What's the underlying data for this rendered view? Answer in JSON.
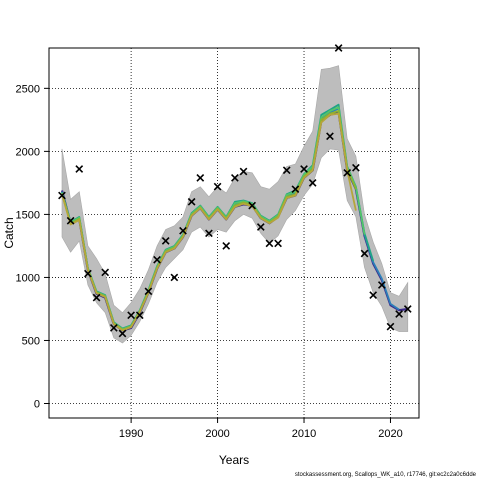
{
  "chart_data": {
    "type": "line",
    "xlabel": "Years",
    "ylabel": "Catch",
    "xlim": [
      1980.5,
      2023.3
    ],
    "ylim": [
      -115,
      2820
    ],
    "xticks": [
      1990,
      2000,
      2010,
      2020
    ],
    "yticks": [
      0,
      500,
      1000,
      1500,
      2000,
      2500
    ],
    "grid": true,
    "colors": {
      "band": "#bdbdbd",
      "band_edge": "#a8a8a8",
      "series": [
        "#3b2a8c",
        "#2c7fb8",
        "#20a486",
        "#54c568",
        "#8fb22d",
        "#b5a63a"
      ],
      "observed": "#000000"
    },
    "years": [
      1982,
      1983,
      1984,
      1985,
      1986,
      1987,
      1988,
      1989,
      1990,
      1991,
      1992,
      1993,
      1994,
      1995,
      1996,
      1997,
      1998,
      1999,
      2000,
      2001,
      2002,
      2003,
      2004,
      2005,
      2006,
      2007,
      2008,
      2009,
      2010,
      2011,
      2012,
      2013,
      2014,
      2015,
      2016,
      2017,
      2018,
      2019,
      2020,
      2021,
      2022
    ],
    "band_upper": [
      2020,
      1620,
      1680,
      1250,
      1150,
      1030,
      780,
      720,
      800,
      910,
      1060,
      1250,
      1380,
      1410,
      1480,
      1680,
      1720,
      1640,
      1720,
      1670,
      1790,
      1840,
      1830,
      1720,
      1700,
      1760,
      1880,
      1900,
      2040,
      2160,
      2650,
      2660,
      2680,
      2100,
      1960,
      1500,
      1280,
      1110,
      880,
      850,
      960
    ],
    "band_lower": [
      1320,
      1200,
      1290,
      940,
      800,
      720,
      520,
      480,
      540,
      650,
      790,
      960,
      1080,
      1150,
      1220,
      1360,
      1400,
      1320,
      1380,
      1360,
      1450,
      1500,
      1470,
      1350,
      1270,
      1330,
      1460,
      1530,
      1650,
      1740,
      1950,
      2020,
      2010,
      1610,
      1480,
      1080,
      880,
      770,
      600,
      570,
      570
    ],
    "series": [
      {
        "values": [
          1690,
          1430,
          1460,
          1060,
          870,
          840,
          630,
          580,
          600,
          720,
          880,
          1070,
          1200,
          1230,
          1320,
          1490,
          1550,
          1460,
          1540,
          1460,
          1560,
          1580,
          1570,
          1470,
          1430,
          1480,
          1630,
          1650,
          1790,
          1850,
          2240,
          2290,
          2310,
          1850,
          1700,
          1330,
          1110,
          980,
          780,
          740,
          750
        ]
      },
      {
        "values": [
          1680,
          1430,
          1470,
          1070,
          880,
          850,
          640,
          590,
          610,
          730,
          890,
          1080,
          1210,
          1240,
          1330,
          1500,
          1560,
          1470,
          1550,
          1470,
          1580,
          1600,
          1580,
          1480,
          1440,
          1490,
          1650,
          1670,
          1810,
          1870,
          2260,
          2310,
          2340,
          1870,
          1710,
          1340,
          1120,
          990,
          790,
          745,
          0
        ]
      },
      {
        "values": [
          1675,
          1440,
          1480,
          1075,
          890,
          860,
          645,
          595,
          620,
          740,
          900,
          1090,
          1220,
          1250,
          1340,
          1510,
          1570,
          1480,
          1560,
          1480,
          1600,
          1610,
          1590,
          1490,
          1450,
          1500,
          1660,
          1690,
          1820,
          1890,
          2290,
          2330,
          2370,
          1880,
          1720,
          1350,
          1130,
          0,
          0,
          0,
          0
        ]
      },
      {
        "values": [
          1670,
          1435,
          1475,
          1070,
          885,
          855,
          640,
          590,
          615,
          735,
          895,
          1085,
          1215,
          1245,
          1335,
          1505,
          1565,
          1475,
          1555,
          1475,
          1590,
          1605,
          1585,
          1485,
          1445,
          1495,
          1655,
          1680,
          1815,
          1880,
          2270,
          2320,
          2350,
          1875,
          1715,
          1340,
          0,
          0,
          0,
          0,
          0
        ]
      },
      {
        "values": [
          1665,
          1425,
          1465,
          1065,
          880,
          850,
          635,
          585,
          610,
          730,
          885,
          1075,
          1205,
          1235,
          1325,
          1495,
          1555,
          1465,
          1545,
          1465,
          1570,
          1595,
          1575,
          1475,
          1435,
          1485,
          1640,
          1660,
          1800,
          1860,
          2250,
          2300,
          2320,
          1860,
          1700,
          0,
          0,
          0,
          0,
          0,
          0
        ]
      },
      {
        "values": [
          1660,
          1420,
          1455,
          1060,
          875,
          845,
          630,
          580,
          605,
          725,
          880,
          1070,
          1200,
          1230,
          1320,
          1490,
          1550,
          1460,
          1540,
          1460,
          1560,
          1585,
          1565,
          1470,
          1430,
          1475,
          1630,
          1650,
          1790,
          1850,
          2230,
          2290,
          2300,
          1850,
          1530,
          0,
          0,
          0,
          0,
          0,
          0
        ]
      }
    ],
    "observed": [
      {
        "x": 1982,
        "y": 1650
      },
      {
        "x": 1983,
        "y": 1450
      },
      {
        "x": 1984,
        "y": 1860
      },
      {
        "x": 1985,
        "y": 1030
      },
      {
        "x": 1986,
        "y": 840
      },
      {
        "x": 1987,
        "y": 1040
      },
      {
        "x": 1988,
        "y": 600
      },
      {
        "x": 1989,
        "y": 555
      },
      {
        "x": 1990,
        "y": 700
      },
      {
        "x": 1991,
        "y": 700
      },
      {
        "x": 1992,
        "y": 890
      },
      {
        "x": 1993,
        "y": 1140
      },
      {
        "x": 1994,
        "y": 1290
      },
      {
        "x": 1995,
        "y": 1000
      },
      {
        "x": 1996,
        "y": 1370
      },
      {
        "x": 1997,
        "y": 1600
      },
      {
        "x": 1998,
        "y": 1790
      },
      {
        "x": 1999,
        "y": 1350
      },
      {
        "x": 2000,
        "y": 1720
      },
      {
        "x": 2001,
        "y": 1250
      },
      {
        "x": 2002,
        "y": 1790
      },
      {
        "x": 2003,
        "y": 1840
      },
      {
        "x": 2004,
        "y": 1570
      },
      {
        "x": 2005,
        "y": 1400
      },
      {
        "x": 2006,
        "y": 1270
      },
      {
        "x": 2007,
        "y": 1270
      },
      {
        "x": 2008,
        "y": 1850
      },
      {
        "x": 2009,
        "y": 1700
      },
      {
        "x": 2010,
        "y": 1860
      },
      {
        "x": 2011,
        "y": 1750
      },
      {
        "x": 2013,
        "y": 2120
      },
      {
        "x": 2014,
        "y": 2820
      },
      {
        "x": 2015,
        "y": 1830
      },
      {
        "x": 2016,
        "y": 1870
      },
      {
        "x": 2017,
        "y": 1190
      },
      {
        "x": 2018,
        "y": 860
      },
      {
        "x": 2019,
        "y": 940
      },
      {
        "x": 2020,
        "y": 610
      },
      {
        "x": 2021,
        "y": 710
      },
      {
        "x": 2022,
        "y": 750
      }
    ]
  },
  "footer": {
    "text": "stockassessment.org, Scallops_WK_a10, r17746, git:ec2c2a0c6dde"
  }
}
